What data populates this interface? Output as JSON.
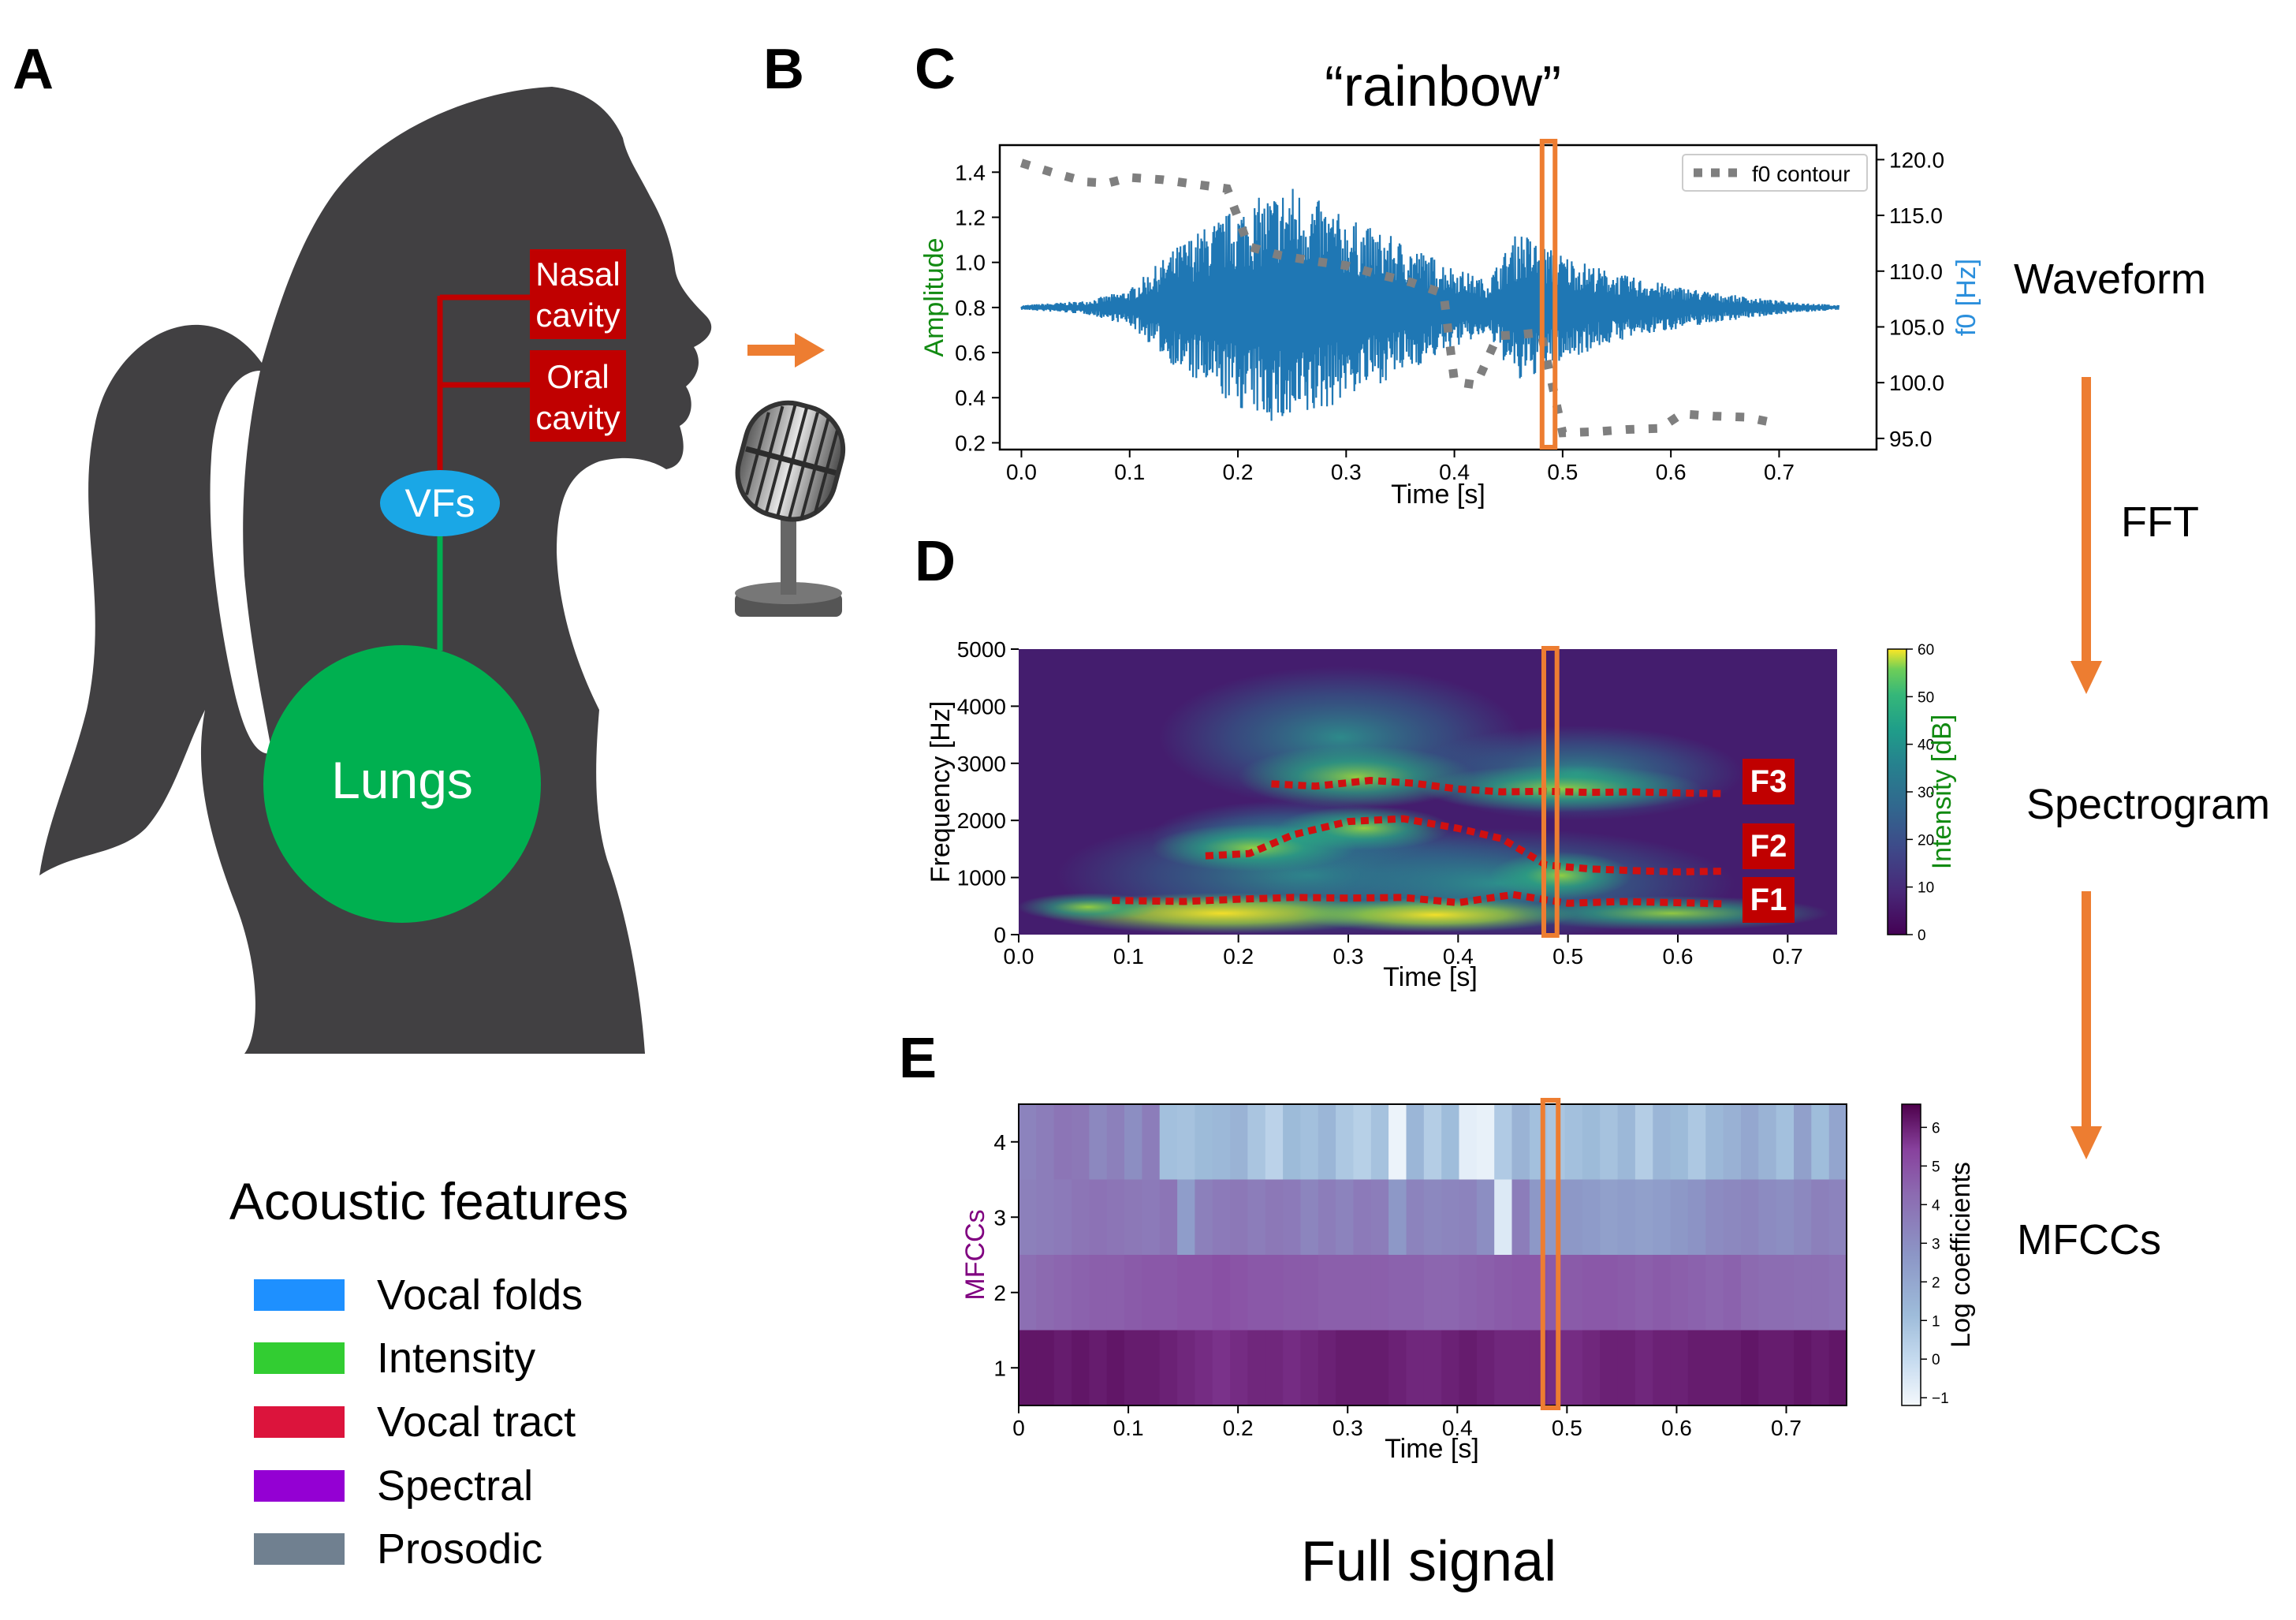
{
  "colors": {
    "silhouette": "#414042",
    "vf_blue": "#1aa7e6",
    "lungs_green": "#00b050",
    "tract_red": "#c00000",
    "waveform": "#1f77b4",
    "f0_gray": "#7f7f7f",
    "highlight_orange": "#ed7d31",
    "amp_label_green": "#118a11",
    "f0_label_blue": "#2b8fdc",
    "mfcc_label_purple": "#800080",
    "int_label_green": "#118a11"
  },
  "panel_letters": {
    "a": "A",
    "b": "B",
    "c": "C",
    "d": "D",
    "e": "E"
  },
  "anatomy": {
    "nasal_line1": "Nasal",
    "nasal_line2": "cavity",
    "oral_line1": "Oral",
    "oral_line2": "cavity",
    "vfs": "VFs",
    "lungs": "Lungs"
  },
  "legend": {
    "title": "Acoustic features",
    "items": [
      {
        "label": "Vocal folds",
        "color": "#1e90ff"
      },
      {
        "label": "Intensity",
        "color": "#32cd32"
      },
      {
        "label": "Vocal tract",
        "color": "#dc143c"
      },
      {
        "label": "Spectral",
        "color": "#9400d3"
      },
      {
        "label": "Prosodic",
        "color": "#708090"
      }
    ]
  },
  "icons": {
    "arrow": "right-arrow-icon",
    "mic": "microphone-icon"
  },
  "word_title": "“rainbow”",
  "bottom_label": "Full signal",
  "pipeline": {
    "waveform": "Waveform",
    "fft": "FFT",
    "spectrogram": "Spectrogram",
    "mfccs": "MFCCs"
  },
  "chart_data": [
    {
      "type": "line",
      "panel": "C",
      "xlabel": "Time [s]",
      "ylabel": "Amplitude",
      "y2label": "f0 [Hz]",
      "xlim": [
        -0.02,
        0.79
      ],
      "ylim": [
        0.17,
        1.52
      ],
      "y2lim": [
        94.0,
        121.3
      ],
      "x_ticks": [
        0.0,
        0.1,
        0.2,
        0.3,
        0.4,
        0.5,
        0.6,
        0.7
      ],
      "x_tick_labels": [
        "0.0",
        "0.1",
        "0.2",
        "0.3",
        "0.4",
        "0.5",
        "0.6",
        "0.7"
      ],
      "y_ticks": [
        0.2,
        0.4,
        0.6,
        0.8,
        1.0,
        1.2,
        1.4
      ],
      "y_tick_labels": [
        "0.2",
        "0.4",
        "0.6",
        "0.8",
        "1.0",
        "1.2",
        "1.4"
      ],
      "y2_ticks": [
        95.0,
        100.0,
        105.0,
        110.0,
        115.0,
        120.0
      ],
      "y2_tick_labels": [
        "95.0",
        "100.0",
        "105.0",
        "110.0",
        "115.0",
        "120.0"
      ],
      "waveform": {
        "baseline": 0.8,
        "duration": 0.755,
        "envelope": [
          [
            0.0,
            0.01
          ],
          [
            0.06,
            0.03
          ],
          [
            0.1,
            0.08
          ],
          [
            0.15,
            0.3
          ],
          [
            0.2,
            0.45
          ],
          [
            0.25,
            0.55
          ],
          [
            0.3,
            0.4
          ],
          [
            0.35,
            0.3
          ],
          [
            0.4,
            0.18
          ],
          [
            0.43,
            0.12
          ],
          [
            0.46,
            0.35
          ],
          [
            0.48,
            0.28
          ],
          [
            0.51,
            0.22
          ],
          [
            0.55,
            0.15
          ],
          [
            0.6,
            0.1
          ],
          [
            0.65,
            0.06
          ],
          [
            0.7,
            0.03
          ],
          [
            0.755,
            0.01
          ]
        ]
      },
      "series": [
        {
          "name": "f0 contour",
          "style": "dotted",
          "axis": "y2",
          "x": [
            0.0,
            0.03,
            0.06,
            0.08,
            0.1,
            0.13,
            0.16,
            0.19,
            0.21,
            0.24,
            0.27,
            0.3,
            0.33,
            0.36,
            0.39,
            0.4,
            0.42,
            0.44,
            0.46,
            0.48,
            0.5,
            0.53,
            0.56,
            0.59,
            0.61,
            0.64,
            0.67,
            0.7
          ],
          "y": [
            119.7,
            118.8,
            118.0,
            117.9,
            118.4,
            118.2,
            117.8,
            117.4,
            112.2,
            111.4,
            110.9,
            110.5,
            109.7,
            109.0,
            108.0,
            100.1,
            99.8,
            104.2,
            104.3,
            104.5,
            95.5,
            95.6,
            95.8,
            95.9,
            97.2,
            97.0,
            96.9,
            96.3
          ]
        }
      ],
      "highlight_x": [
        0.481,
        0.493
      ],
      "legend_position": "top-right"
    },
    {
      "type": "heatmap",
      "panel": "D",
      "xlabel": "Time [s]",
      "ylabel": "Frequency [Hz]",
      "colorbar_label": "Intensity [dB]",
      "xlim": [
        0.0,
        0.745
      ],
      "ylim": [
        0,
        5000
      ],
      "x_ticks": [
        0.0,
        0.1,
        0.2,
        0.3,
        0.4,
        0.5,
        0.6,
        0.7
      ],
      "x_tick_labels": [
        "0.0",
        "0.1",
        "0.2",
        "0.3",
        "0.4",
        "0.5",
        "0.6",
        "0.7"
      ],
      "y_ticks": [
        0,
        1000,
        2000,
        3000,
        4000,
        5000
      ],
      "y_tick_labels": [
        "0",
        "1000",
        "2000",
        "3000",
        "4000",
        "5000"
      ],
      "colorbar_range": [
        0,
        60
      ],
      "colorbar_ticks": [
        0,
        10,
        20,
        30,
        40,
        50,
        60
      ],
      "colorbar_tick_labels": [
        "0",
        "10",
        "20",
        "30",
        "40",
        "50",
        "60"
      ],
      "formants": [
        {
          "name": "F1",
          "x": [
            0.085,
            0.15,
            0.2,
            0.25,
            0.3,
            0.35,
            0.4,
            0.45,
            0.5,
            0.55,
            0.6,
            0.64
          ],
          "y": [
            600,
            580,
            620,
            650,
            640,
            650,
            560,
            700,
            550,
            580,
            560,
            540
          ]
        },
        {
          "name": "F2",
          "x": [
            0.17,
            0.21,
            0.25,
            0.3,
            0.35,
            0.4,
            0.44,
            0.48,
            0.52,
            0.56,
            0.6,
            0.64
          ],
          "y": [
            1380,
            1420,
            1750,
            1980,
            2030,
            1860,
            1680,
            1220,
            1150,
            1120,
            1100,
            1110
          ]
        },
        {
          "name": "F3",
          "x": [
            0.23,
            0.27,
            0.32,
            0.36,
            0.4,
            0.44,
            0.48,
            0.52,
            0.56,
            0.6,
            0.64
          ],
          "y": [
            2640,
            2600,
            2700,
            2650,
            2550,
            2500,
            2510,
            2490,
            2500,
            2480,
            2470
          ]
        }
      ],
      "highlight_x": [
        0.478,
        0.49
      ]
    },
    {
      "type": "heatmap",
      "panel": "E",
      "xlabel": "Time [s]",
      "ylabel": "MFCCs",
      "colorbar_label": "Log coefficients",
      "xlim": [
        0,
        0.755
      ],
      "ylim": [
        0.5,
        4.5
      ],
      "x_ticks": [
        0,
        0.1,
        0.2,
        0.3,
        0.4,
        0.5,
        0.6,
        0.7
      ],
      "x_tick_labels": [
        "0",
        "0.1",
        "0.2",
        "0.3",
        "0.4",
        "0.5",
        "0.6",
        "0.7"
      ],
      "y_ticks": [
        1,
        2,
        3,
        4
      ],
      "y_tick_labels": [
        "1",
        "2",
        "3",
        "4"
      ],
      "colorbar_range": [
        -1.2,
        6.6
      ],
      "colorbar_ticks": [
        -1,
        0,
        1,
        2,
        3,
        4,
        5,
        6
      ],
      "colorbar_tick_labels": [
        "−1",
        "0",
        "1",
        "2",
        "3",
        "4",
        "5",
        "6"
      ],
      "rows": [
        {
          "coefficient": 4,
          "values": [
            3.4,
            3.6,
            3.9,
            3.8,
            3.2,
            3.5,
            3.0,
            3.6,
            1.0,
            0.9,
            1.2,
            1.3,
            1.5,
            0.8,
            0.3,
            1.2,
            1.0,
            1.4,
            0.7,
            0.4,
            0.9,
            -1.0,
            1.4,
            0.5,
            1.1,
            -0.8,
            -0.9,
            0.6,
            1.5,
            1.0,
            0.8,
            1.0,
            1.2,
            0.9,
            1.3,
            0.5,
            1.4,
            1.2,
            0.7,
            1.3,
            1.6,
            2.0,
            1.5,
            1.0,
            2.3,
            1.1,
            2.1
          ]
        },
        {
          "coefficient": 3,
          "values": [
            3.5,
            3.6,
            3.7,
            3.9,
            4.0,
            3.9,
            3.8,
            3.7,
            3.9,
            2.4,
            3.5,
            3.7,
            3.8,
            3.6,
            3.8,
            3.7,
            3.3,
            3.6,
            3.4,
            3.7,
            3.6,
            2.6,
            3.4,
            3.2,
            3.3,
            3.4,
            3.0,
            -0.6,
            3.6,
            2.6,
            2.6,
            2.6,
            2.5,
            2.3,
            2.4,
            2.3,
            2.4,
            2.6,
            2.8,
            3.1,
            3.2,
            3.3,
            3.1,
            3.0,
            3.2,
            3.5,
            3.4
          ]
        },
        {
          "coefficient": 2,
          "values": [
            4.1,
            4.3,
            4.4,
            4.5,
            4.6,
            4.6,
            4.7,
            4.8,
            4.8,
            4.9,
            4.9,
            5.0,
            4.9,
            4.8,
            4.8,
            4.7,
            4.7,
            4.6,
            4.6,
            4.6,
            4.6,
            4.5,
            4.5,
            4.4,
            4.4,
            4.5,
            4.6,
            4.7,
            4.8,
            4.8,
            4.7,
            4.7,
            4.8,
            4.8,
            4.7,
            4.6,
            4.7,
            4.6,
            4.5,
            4.4,
            4.5,
            4.3,
            4.2,
            4.2,
            4.1,
            4.1,
            4.0
          ]
        },
        {
          "coefficient": 1,
          "values": [
            6.2,
            6.2,
            6.1,
            6.2,
            6.1,
            6.2,
            6.1,
            6.1,
            6.0,
            5.9,
            5.8,
            5.7,
            5.8,
            5.9,
            5.9,
            5.8,
            5.9,
            6.0,
            6.1,
            6.1,
            6.1,
            6.0,
            5.9,
            5.9,
            6.0,
            6.1,
            6.0,
            5.9,
            5.9,
            5.9,
            5.8,
            5.8,
            5.9,
            6.0,
            6.0,
            5.9,
            6.0,
            6.0,
            6.1,
            6.1,
            6.1,
            6.2,
            6.1,
            6.1,
            6.2,
            6.1,
            6.2
          ]
        }
      ],
      "highlight_x": [
        0.478,
        0.492
      ]
    }
  ]
}
